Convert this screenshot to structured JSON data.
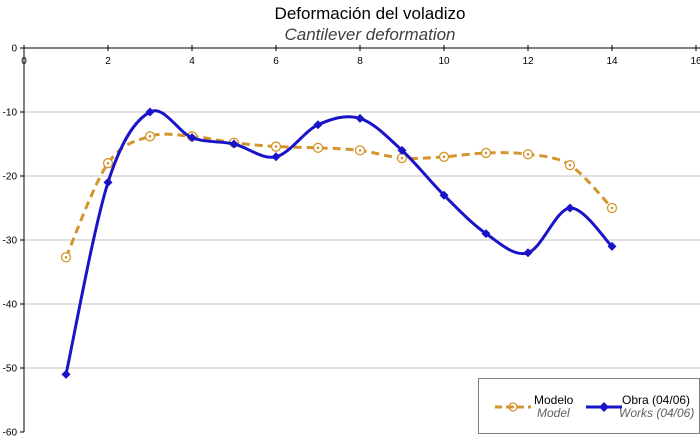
{
  "chart_data": {
    "type": "line",
    "title": "Deformación del voladizo",
    "subtitle": "Cantilever deformation",
    "xlim": [
      0,
      16
    ],
    "ylim": [
      -60,
      0
    ],
    "x_ticks": [
      0,
      2,
      4,
      6,
      8,
      10,
      12,
      14,
      16
    ],
    "y_ticks": [
      0,
      -10,
      -20,
      -30,
      -40,
      -50,
      -60
    ],
    "x_tick_labels": [
      "0",
      "2",
      "4",
      "6",
      "8",
      "10",
      "12",
      "14",
      "16"
    ],
    "y_tick_labels": [
      "0",
      "-10",
      "-20",
      "-30",
      "-40",
      "-50",
      "-60"
    ],
    "grid": "horizontal",
    "legend_position": "bottom-right",
    "series": [
      {
        "name": "Modelo",
        "name_en": "Model",
        "color": "#d4952c",
        "style": "dashed",
        "marker": "circle",
        "x": [
          1,
          2,
          3,
          4,
          5,
          6,
          7,
          8,
          9,
          10,
          11,
          12,
          13,
          14
        ],
        "y": [
          -32.7,
          -18.0,
          -13.8,
          -13.8,
          -14.8,
          -15.4,
          -15.6,
          -16.0,
          -17.2,
          -17.0,
          -16.4,
          -16.6,
          -18.3,
          -25.0
        ]
      },
      {
        "name": "Obra (04/06)",
        "name_en": "Works (04/06)",
        "color": "#1a14c9",
        "style": "solid",
        "marker": "diamond",
        "x": [
          1,
          2,
          3,
          4,
          5,
          6,
          7,
          8,
          9,
          10,
          11,
          12,
          13,
          14
        ],
        "y": [
          -51.0,
          -21.0,
          -10.0,
          -14.0,
          -15.0,
          -17.0,
          -12.0,
          -11.0,
          -16.0,
          -23.0,
          -29.0,
          -32.0,
          -25.0,
          -31.0
        ]
      }
    ]
  }
}
